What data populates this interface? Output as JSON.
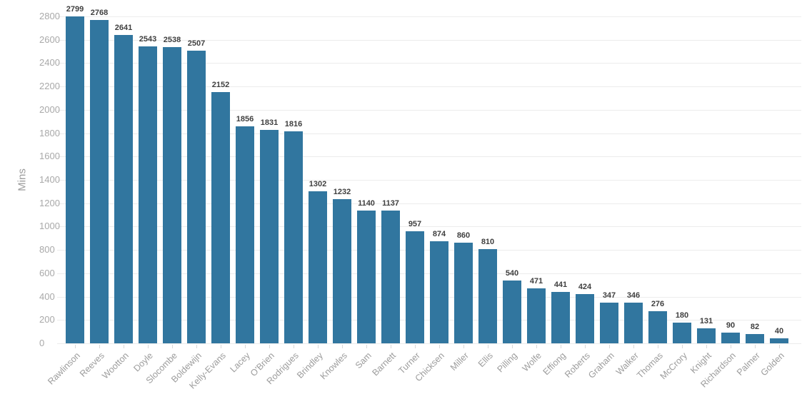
{
  "chart_data": {
    "type": "bar",
    "title": "",
    "xlabel": "",
    "ylabel": "Mins",
    "ylim": [
      0,
      2800
    ],
    "ytick_step": 200,
    "grid": true,
    "legend": false,
    "bar_color": "#31769F",
    "value_label_color": "#3F3F3F",
    "ytick_label_color": "#A9A9A9",
    "category_label_color": "#9C9C9C",
    "ylabel_color": "#9C9C9C",
    "grid_color": "#ECECEC",
    "axis_tickmark_color": "#D9D9D9",
    "categories": [
      "Rawlinson",
      "Reeves",
      "Wootton",
      "Doyle",
      "Slocombe",
      "Boldewijn",
      "Kelly-Evans",
      "Lacey",
      "O'Brien",
      "Rodrigues",
      "Brindley",
      "Knowles",
      "Sam",
      "Barnett",
      "Turner",
      "Chicksen",
      "Miller",
      "Ellis",
      "Pilling",
      "Wolfe",
      "Effiong",
      "Roberts",
      "Graham",
      "Walker",
      "Thomas",
      "McCrory",
      "Knight",
      "Richardson",
      "Palmer",
      "Golden"
    ],
    "values": [
      2799,
      2768,
      2641,
      2543,
      2538,
      2507,
      2152,
      1856,
      1831,
      1816,
      1302,
      1232,
      1140,
      1137,
      957,
      874,
      860,
      810,
      540,
      471,
      441,
      424,
      347,
      346,
      276,
      180,
      131,
      90,
      82,
      40
    ]
  }
}
